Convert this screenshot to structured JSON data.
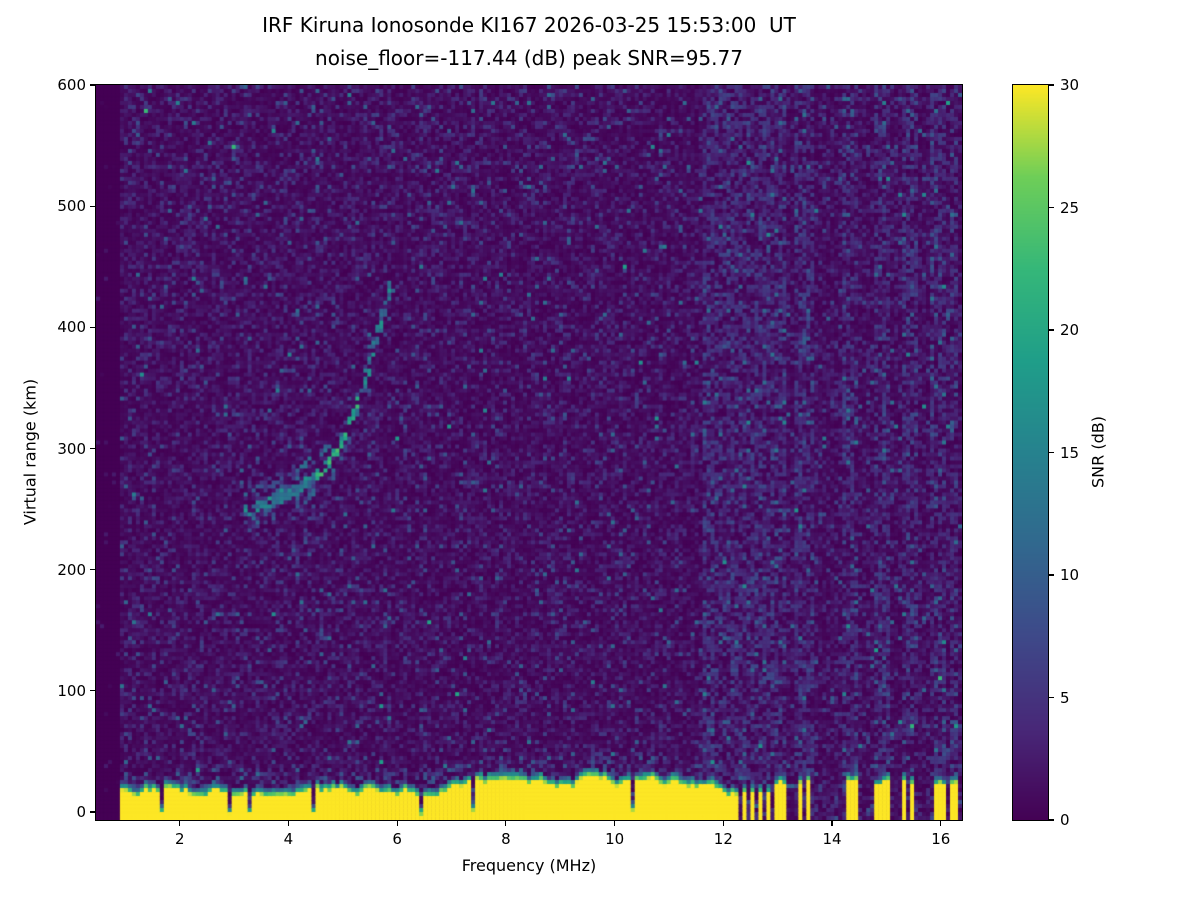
{
  "chart_data": {
    "type": "heatmap",
    "station": "IRF Kiruna Ionosonde KI167",
    "timestamp_ut": "2026-03-25 15:53:00",
    "noise_floor_db": -117.44,
    "peak_snr_db": 95.77,
    "title": "IRF Kiruna Ionosonde KI167 2026-03-25 15:53:00  UT",
    "subtitle": "noise_floor=-117.44 (dB) peak SNR=95.77",
    "xlabel": "Frequency (MHz)",
    "ylabel": "Virtual range (km)",
    "xlim": [
      0.46,
      16.39
    ],
    "ylim": [
      -6.6,
      600
    ],
    "x_ticks": [
      2,
      4,
      6,
      8,
      10,
      12,
      14,
      16
    ],
    "y_ticks": [
      0,
      100,
      200,
      300,
      400,
      500,
      600
    ],
    "grid": false,
    "colorbar": {
      "label": "SNR (dB)",
      "min": 0,
      "max": 30,
      "ticks": [
        0,
        5,
        10,
        15,
        20,
        25,
        30
      ],
      "colormap": "viridis",
      "stops": [
        [
          0,
          "#440154"
        ],
        [
          0.125,
          "#482878"
        ],
        [
          0.25,
          "#3e4989"
        ],
        [
          0.375,
          "#31688e"
        ],
        [
          0.5,
          "#26828e"
        ],
        [
          0.625,
          "#1f9e89"
        ],
        [
          0.75,
          "#35b779"
        ],
        [
          0.875,
          "#6ece58"
        ],
        [
          1,
          "#fde725"
        ]
      ]
    },
    "features": {
      "data_start_mhz": 0.9,
      "background_noise_db": [
        0,
        6
      ],
      "ground_band": {
        "snr_db": 30,
        "top_km_nominal": 28,
        "solid_until_mhz": 11.65,
        "notches_mhz": [
          1.65,
          2.9,
          3.3,
          4.45,
          6.45,
          7.4,
          10.35
        ]
      },
      "echo_trace": {
        "snr_db_range": [
          10,
          24
        ],
        "points": [
          [
            3.2,
            248
          ],
          [
            3.6,
            254
          ],
          [
            4.0,
            262
          ],
          [
            4.3,
            270
          ],
          [
            4.6,
            281
          ],
          [
            4.9,
            298
          ],
          [
            5.1,
            318
          ],
          [
            5.3,
            342
          ],
          [
            5.5,
            370
          ],
          [
            5.65,
            395
          ],
          [
            5.78,
            415
          ],
          [
            5.87,
            432
          ]
        ]
      },
      "interference_stripes_mhz": [
        11.7,
        11.84,
        11.98,
        12.12,
        12.26,
        12.4,
        12.54,
        12.68,
        12.82,
        12.96,
        13.1,
        13.42,
        13.56,
        14.28,
        14.42,
        14.84,
        14.98,
        15.34,
        15.48,
        15.9,
        16.04,
        16.24
      ]
    }
  }
}
